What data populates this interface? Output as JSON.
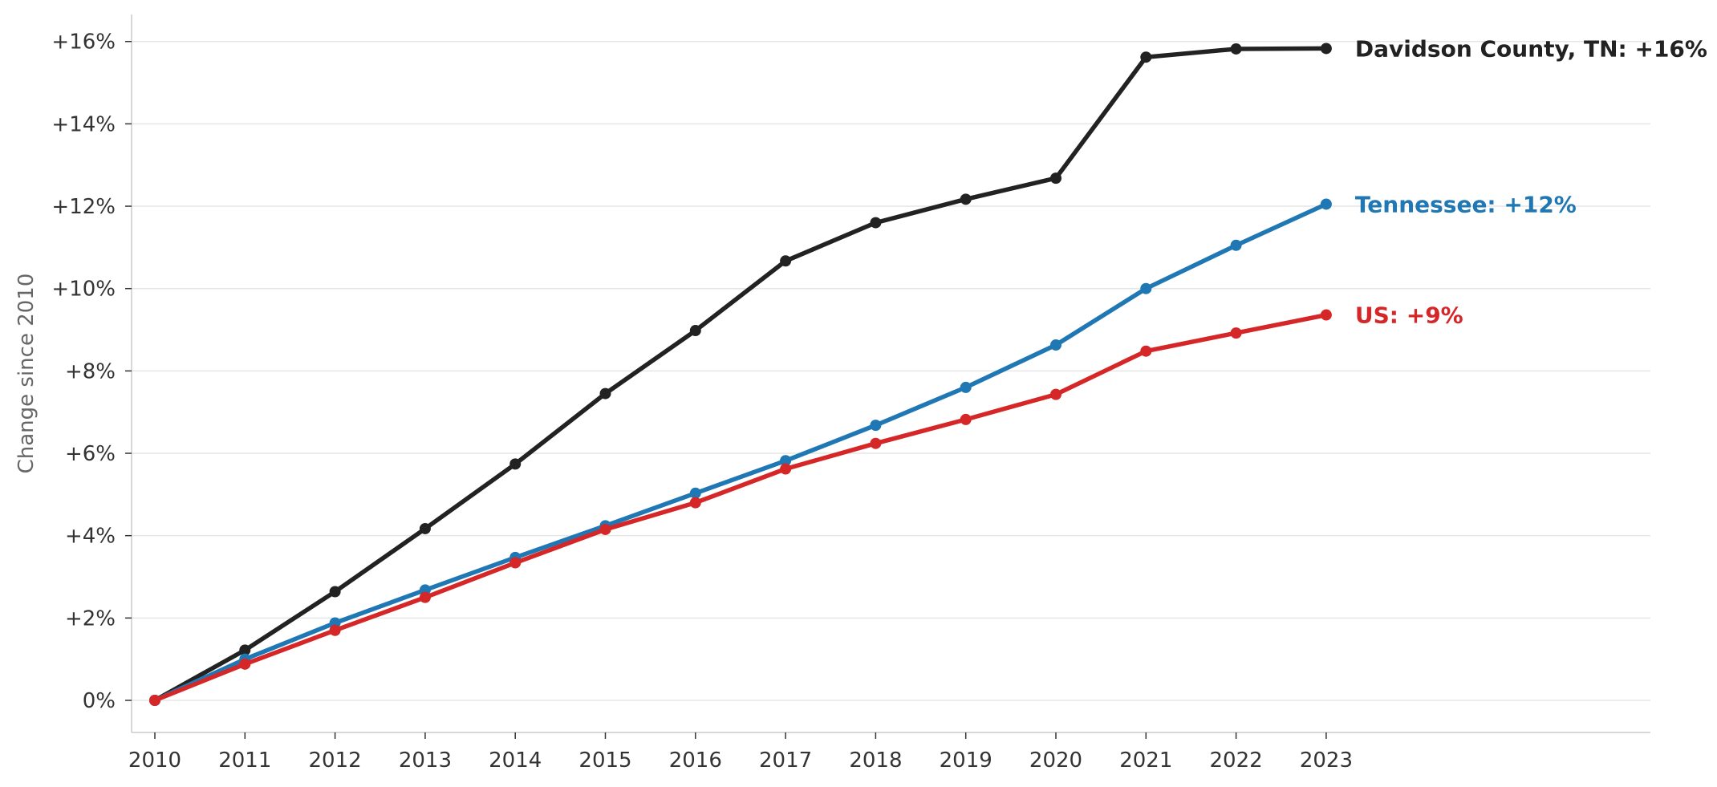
{
  "chart_data": {
    "type": "line",
    "title": "",
    "xlabel": "",
    "ylabel": "Change since 2010",
    "x": [
      2010,
      2011,
      2012,
      2013,
      2014,
      2015,
      2016,
      2017,
      2018,
      2019,
      2020,
      2021,
      2022,
      2023
    ],
    "ylim": [
      -0.8,
      16.6
    ],
    "y_ticks": [
      0,
      2,
      4,
      6,
      8,
      10,
      12,
      14,
      16
    ],
    "y_tick_labels": [
      "0%",
      "+2%",
      "+4%",
      "+6%",
      "+8%",
      "+10%",
      "+12%",
      "+14%",
      "+16%"
    ],
    "x_tick_labels": [
      "2010",
      "2011",
      "2012",
      "2013",
      "2014",
      "2015",
      "2016",
      "2017",
      "2018",
      "2019",
      "2020",
      "2021",
      "2022",
      "2023"
    ],
    "grid": "horizontal",
    "legend": "end-of-line labels",
    "series": [
      {
        "label": "Davidson County, TN: +16%",
        "color": "#222222",
        "values": [
          0,
          1.22,
          2.64,
          4.17,
          5.74,
          7.45,
          8.98,
          10.67,
          11.6,
          12.17,
          12.68,
          15.62,
          15.82,
          15.83
        ]
      },
      {
        "label": "Tennessee: +12%",
        "color": "#1f77b4",
        "values": [
          0,
          1.0,
          1.88,
          2.68,
          3.47,
          4.24,
          5.03,
          5.82,
          6.68,
          7.6,
          8.63,
          10.0,
          11.05,
          12.05
        ]
      },
      {
        "label": "US: +9%",
        "color": "#d62728",
        "values": [
          0,
          0.88,
          1.7,
          2.5,
          3.34,
          4.15,
          4.8,
          5.62,
          6.24,
          6.82,
          7.43,
          8.48,
          8.92,
          9.36
        ]
      }
    ]
  }
}
